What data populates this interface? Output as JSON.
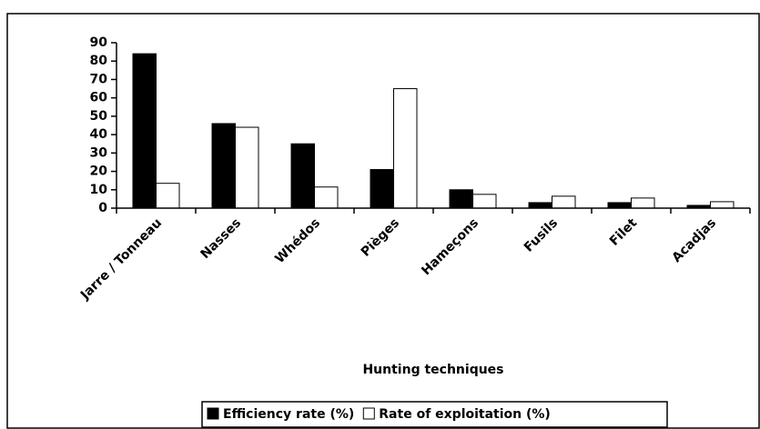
{
  "chart_data": {
    "type": "bar",
    "x_label": "Hunting techniques",
    "categories": [
      "Jarre / Tonneau",
      "Nasses",
      "Whédos",
      "Pièges",
      "Hameçons",
      "Fusils",
      "Filet",
      "Acadjas"
    ],
    "series": [
      {
        "name": "Efficiency rate (%)",
        "color": "#000000",
        "values": [
          84,
          46,
          35,
          21,
          10,
          3,
          3,
          1.5
        ]
      },
      {
        "name": "Rate of exploitation (%)",
        "color": "#ffffff",
        "values": [
          13.5,
          44,
          11.5,
          65,
          7.5,
          6.5,
          5.5,
          3.5
        ]
      }
    ],
    "ylim": [
      0,
      90
    ],
    "yticks": [
      0,
      10,
      20,
      30,
      40,
      50,
      60,
      70,
      80,
      90
    ],
    "legend": "bottom"
  }
}
